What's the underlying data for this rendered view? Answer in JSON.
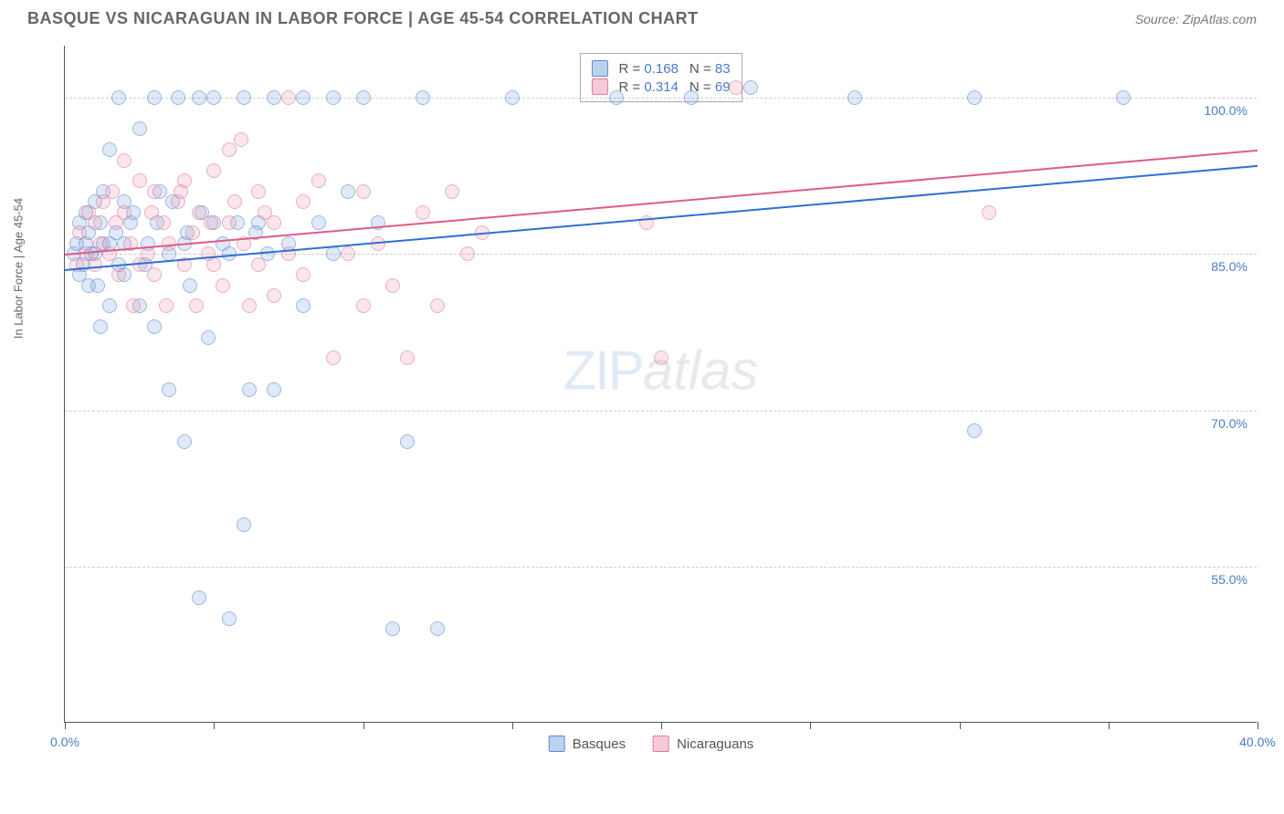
{
  "header": {
    "title": "BASQUE VS NICARAGUAN IN LABOR FORCE | AGE 45-54 CORRELATION CHART",
    "source_label": "Source: ZipAtlas.com"
  },
  "chart": {
    "type": "scatter",
    "y_axis_title": "In Labor Force | Age 45-54",
    "xlim": [
      0,
      40
    ],
    "ylim": [
      40,
      105
    ],
    "x_ticks": [
      0,
      5,
      10,
      15,
      20,
      25,
      30,
      35,
      40
    ],
    "x_tick_labels": {
      "0": "0.0%",
      "40": "40.0%"
    },
    "y_gridlines": [
      55,
      70,
      85,
      100
    ],
    "y_tick_labels": {
      "55": "55.0%",
      "70": "70.0%",
      "85": "85.0%",
      "100": "100.0%"
    },
    "grid_color": "#cccccc",
    "background_color": "#ffffff",
    "axis_color": "#555555",
    "label_color": "#4a7bc8",
    "watermark": {
      "part1": "ZIP",
      "part2": "atlas"
    },
    "series": [
      {
        "id": "s1",
        "name": "Basques",
        "marker_color": "#78a5dc",
        "marker_border": "#5a8cd0",
        "line_color": "#2e6fd4",
        "R": "0.168",
        "N": "83",
        "trend": {
          "x1": 0,
          "y1": 83.5,
          "x2": 40,
          "y2": 93.5
        },
        "points": [
          [
            0.3,
            85
          ],
          [
            0.4,
            86
          ],
          [
            0.5,
            83
          ],
          [
            0.5,
            88
          ],
          [
            0.6,
            84
          ],
          [
            0.7,
            86
          ],
          [
            0.8,
            82
          ],
          [
            0.8,
            87
          ],
          [
            1.0,
            85
          ],
          [
            1.0,
            90
          ],
          [
            1.1,
            82
          ],
          [
            1.2,
            78
          ],
          [
            1.2,
            88
          ],
          [
            1.3,
            86
          ],
          [
            1.5,
            80
          ],
          [
            1.5,
            95
          ],
          [
            1.8,
            84
          ],
          [
            1.8,
            100
          ],
          [
            2.0,
            86
          ],
          [
            2.0,
            83
          ],
          [
            2.2,
            88
          ],
          [
            2.5,
            80
          ],
          [
            2.5,
            97
          ],
          [
            2.7,
            84
          ],
          [
            3.0,
            100
          ],
          [
            3.0,
            78
          ],
          [
            3.2,
            91
          ],
          [
            3.5,
            85
          ],
          [
            3.5,
            72
          ],
          [
            3.8,
            100
          ],
          [
            4.0,
            86
          ],
          [
            4.0,
            67
          ],
          [
            4.2,
            82
          ],
          [
            4.5,
            100
          ],
          [
            4.5,
            52
          ],
          [
            4.8,
            77
          ],
          [
            5.0,
            88
          ],
          [
            5.0,
            100
          ],
          [
            5.5,
            85
          ],
          [
            5.5,
            50
          ],
          [
            6.0,
            100
          ],
          [
            6.0,
            59
          ],
          [
            6.2,
            72
          ],
          [
            6.5,
            88
          ],
          [
            6.8,
            85
          ],
          [
            7.0,
            72
          ],
          [
            7.0,
            100
          ],
          [
            7.5,
            86
          ],
          [
            8.0,
            100
          ],
          [
            8.0,
            80
          ],
          [
            8.5,
            88
          ],
          [
            9.0,
            100
          ],
          [
            9.0,
            85
          ],
          [
            9.5,
            91
          ],
          [
            10.0,
            100
          ],
          [
            10.5,
            88
          ],
          [
            11.0,
            49
          ],
          [
            11.5,
            67
          ],
          [
            12.0,
            100
          ],
          [
            12.5,
            49
          ],
          [
            1.5,
            86
          ],
          [
            2.0,
            90
          ],
          [
            0.7,
            89
          ],
          [
            0.9,
            85
          ],
          [
            1.3,
            91
          ],
          [
            1.7,
            87
          ],
          [
            2.3,
            89
          ],
          [
            2.8,
            86
          ],
          [
            3.1,
            88
          ],
          [
            3.6,
            90
          ],
          [
            4.1,
            87
          ],
          [
            4.6,
            89
          ],
          [
            5.3,
            86
          ],
          [
            5.8,
            88
          ],
          [
            6.4,
            87
          ],
          [
            26.5,
            100
          ],
          [
            30.5,
            100
          ],
          [
            35.5,
            100
          ],
          [
            30.5,
            68
          ],
          [
            18.5,
            100
          ],
          [
            23.0,
            101
          ],
          [
            21.0,
            100
          ],
          [
            15.0,
            100
          ]
        ]
      },
      {
        "id": "s2",
        "name": "Nicaguans_label_fix",
        "display_name": "Nicaraguans",
        "marker_color": "#eb96af",
        "marker_border": "#e07a9a",
        "line_color": "#e05a8a",
        "R": "0.314",
        "N": "69",
        "trend": {
          "x1": 0,
          "y1": 85.0,
          "x2": 40,
          "y2": 95.0
        },
        "points": [
          [
            0.4,
            84
          ],
          [
            0.5,
            87
          ],
          [
            0.7,
            85
          ],
          [
            0.8,
            89
          ],
          [
            1.0,
            84
          ],
          [
            1.0,
            88
          ],
          [
            1.2,
            86
          ],
          [
            1.3,
            90
          ],
          [
            1.5,
            85
          ],
          [
            1.6,
            91
          ],
          [
            1.8,
            83
          ],
          [
            2.0,
            89
          ],
          [
            2.0,
            94
          ],
          [
            2.2,
            86
          ],
          [
            2.5,
            84
          ],
          [
            2.5,
            92
          ],
          [
            2.8,
            85
          ],
          [
            3.0,
            91
          ],
          [
            3.0,
            83
          ],
          [
            3.3,
            88
          ],
          [
            3.5,
            86
          ],
          [
            3.8,
            90
          ],
          [
            4.0,
            84
          ],
          [
            4.0,
            92
          ],
          [
            4.3,
            87
          ],
          [
            4.5,
            89
          ],
          [
            4.8,
            85
          ],
          [
            5.0,
            93
          ],
          [
            5.0,
            84
          ],
          [
            5.5,
            88
          ],
          [
            5.5,
            95
          ],
          [
            5.9,
            96
          ],
          [
            6.0,
            86
          ],
          [
            6.5,
            84
          ],
          [
            6.5,
            91
          ],
          [
            7.0,
            81
          ],
          [
            7.0,
            88
          ],
          [
            7.5,
            85
          ],
          [
            7.5,
            100
          ],
          [
            8.0,
            83
          ],
          [
            8.0,
            90
          ],
          [
            8.5,
            92
          ],
          [
            9.0,
            75
          ],
          [
            9.5,
            85
          ],
          [
            10.0,
            91
          ],
          [
            10.0,
            80
          ],
          [
            10.5,
            86
          ],
          [
            11.0,
            82
          ],
          [
            11.5,
            75
          ],
          [
            12.0,
            89
          ],
          [
            12.5,
            80
          ],
          [
            13.0,
            91
          ],
          [
            13.5,
            85
          ],
          [
            14.0,
            87
          ],
          [
            19.5,
            88
          ],
          [
            20.0,
            75
          ],
          [
            22.5,
            101
          ],
          [
            31.0,
            89
          ],
          [
            1.7,
            88
          ],
          [
            2.3,
            80
          ],
          [
            2.9,
            89
          ],
          [
            3.4,
            80
          ],
          [
            3.9,
            91
          ],
          [
            4.4,
            80
          ],
          [
            4.9,
            88
          ],
          [
            5.3,
            82
          ],
          [
            5.7,
            90
          ],
          [
            6.2,
            80
          ],
          [
            6.7,
            89
          ]
        ]
      }
    ],
    "bottom_legend": [
      {
        "series": "s1",
        "label": "Basques"
      },
      {
        "series": "s2",
        "label": "Nicaraguans"
      }
    ],
    "stats_legend": {
      "r_prefix": "R = ",
      "n_prefix": "N = "
    }
  }
}
